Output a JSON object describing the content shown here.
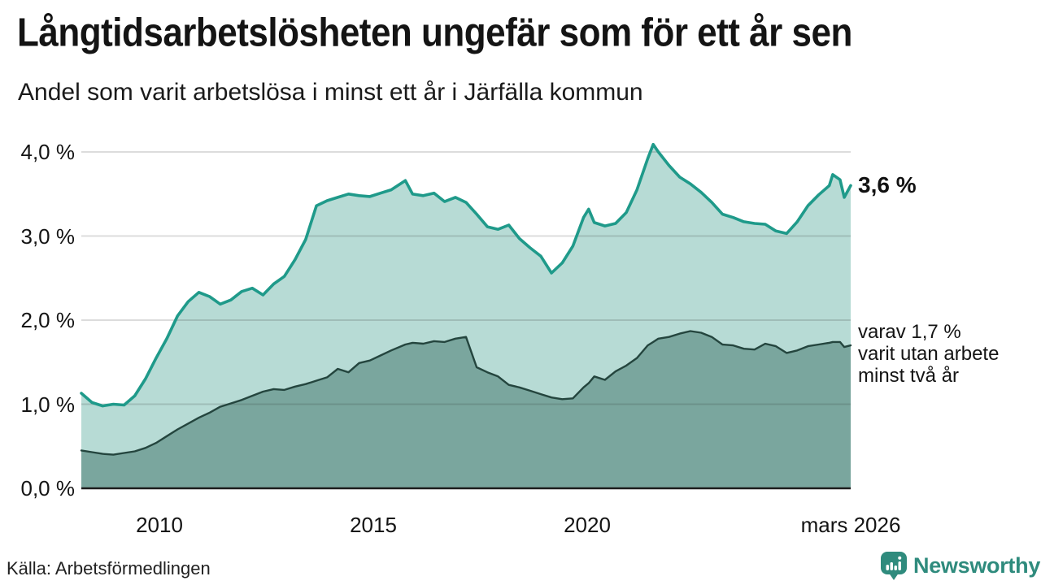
{
  "chart_data": {
    "type": "area",
    "title": "Långtidsarbetslösheten ungefär som för ett år sen",
    "subtitle": "Andel som varit arbetslösa i minst ett år i Järfälla kommun",
    "xlim": [
      2008.17,
      2026.17
    ],
    "ylim": [
      0,
      4.3
    ],
    "grid": true,
    "legend_position": "none",
    "yticks": [
      {
        "value": 4.0,
        "label": "4,0 %"
      },
      {
        "value": 3.0,
        "label": "3,0 %"
      },
      {
        "value": 2.0,
        "label": "2,0 %"
      },
      {
        "value": 1.0,
        "label": "1,0 %"
      },
      {
        "value": 0.0,
        "label": "0,0 %"
      }
    ],
    "xticks": [
      {
        "year": 2010,
        "label": "2010"
      },
      {
        "year": 2015,
        "label": "2015"
      },
      {
        "year": 2020,
        "label": "2020"
      },
      {
        "year": 2026.17,
        "label": "mars 2026"
      }
    ],
    "x": [
      2008.17,
      2008.42,
      2008.67,
      2008.92,
      2009.17,
      2009.42,
      2009.67,
      2009.92,
      2010.17,
      2010.42,
      2010.67,
      2010.92,
      2011.17,
      2011.42,
      2011.67,
      2011.92,
      2012.17,
      2012.42,
      2012.67,
      2012.92,
      2013.17,
      2013.42,
      2013.67,
      2013.92,
      2014.17,
      2014.42,
      2014.67,
      2014.92,
      2015.17,
      2015.42,
      2015.75,
      2015.92,
      2016.17,
      2016.42,
      2016.67,
      2016.92,
      2017.17,
      2017.42,
      2017.67,
      2017.92,
      2018.17,
      2018.42,
      2018.67,
      2018.92,
      2019.17,
      2019.42,
      2019.67,
      2019.92,
      2020.04,
      2020.17,
      2020.42,
      2020.67,
      2020.92,
      2021.17,
      2021.42,
      2021.55,
      2021.67,
      2021.92,
      2022.17,
      2022.42,
      2022.67,
      2022.92,
      2023.17,
      2023.42,
      2023.67,
      2023.92,
      2024.17,
      2024.42,
      2024.67,
      2024.92,
      2025.17,
      2025.42,
      2025.67,
      2025.75,
      2025.92,
      2026.02,
      2026.17
    ],
    "series": [
      {
        "name": "Arbetslösa minst ett år",
        "line_color": "#1f9a8a",
        "fill_color": "#b7dbd5",
        "latest_value": "3,6 %",
        "values": [
          1.13,
          1.02,
          0.98,
          1.0,
          0.99,
          1.1,
          1.3,
          1.55,
          1.78,
          2.05,
          2.22,
          2.33,
          2.28,
          2.19,
          2.24,
          2.34,
          2.38,
          2.3,
          2.43,
          2.52,
          2.72,
          2.96,
          3.36,
          3.42,
          3.46,
          3.5,
          3.48,
          3.47,
          3.51,
          3.55,
          3.66,
          3.5,
          3.48,
          3.51,
          3.41,
          3.46,
          3.4,
          3.26,
          3.11,
          3.08,
          3.13,
          2.97,
          2.86,
          2.76,
          2.56,
          2.68,
          2.88,
          3.22,
          3.32,
          3.16,
          3.12,
          3.15,
          3.28,
          3.55,
          3.92,
          4.09,
          4.0,
          3.84,
          3.7,
          3.62,
          3.52,
          3.4,
          3.26,
          3.22,
          3.17,
          3.15,
          3.14,
          3.06,
          3.03,
          3.17,
          3.36,
          3.49,
          3.6,
          3.73,
          3.67,
          3.46,
          3.6
        ]
      },
      {
        "name": "Utan arbete minst två år",
        "line_color": "#24453e",
        "fill_color": "#7aa69e",
        "latest_value": "1,7 %",
        "annotation_lines": [
          "varav 1,7 %",
          "varit utan arbete",
          "minst två år"
        ],
        "values": [
          0.45,
          0.43,
          0.41,
          0.4,
          0.42,
          0.44,
          0.48,
          0.54,
          0.62,
          0.7,
          0.77,
          0.84,
          0.9,
          0.97,
          1.01,
          1.05,
          1.1,
          1.15,
          1.18,
          1.17,
          1.21,
          1.24,
          1.28,
          1.32,
          1.42,
          1.38,
          1.49,
          1.52,
          1.58,
          1.64,
          1.71,
          1.73,
          1.72,
          1.75,
          1.74,
          1.78,
          1.8,
          1.44,
          1.38,
          1.33,
          1.23,
          1.2,
          1.16,
          1.12,
          1.08,
          1.06,
          1.07,
          1.2,
          1.25,
          1.33,
          1.29,
          1.39,
          1.46,
          1.55,
          1.7,
          1.74,
          1.78,
          1.8,
          1.84,
          1.87,
          1.85,
          1.8,
          1.71,
          1.7,
          1.66,
          1.65,
          1.72,
          1.69,
          1.61,
          1.64,
          1.69,
          1.71,
          1.73,
          1.74,
          1.74,
          1.68,
          1.7
        ]
      }
    ]
  },
  "footer": {
    "source": "Källa: Arbetsförmedlingen",
    "brand": "Newsworthy",
    "brand_color": "#2f8b7d"
  }
}
